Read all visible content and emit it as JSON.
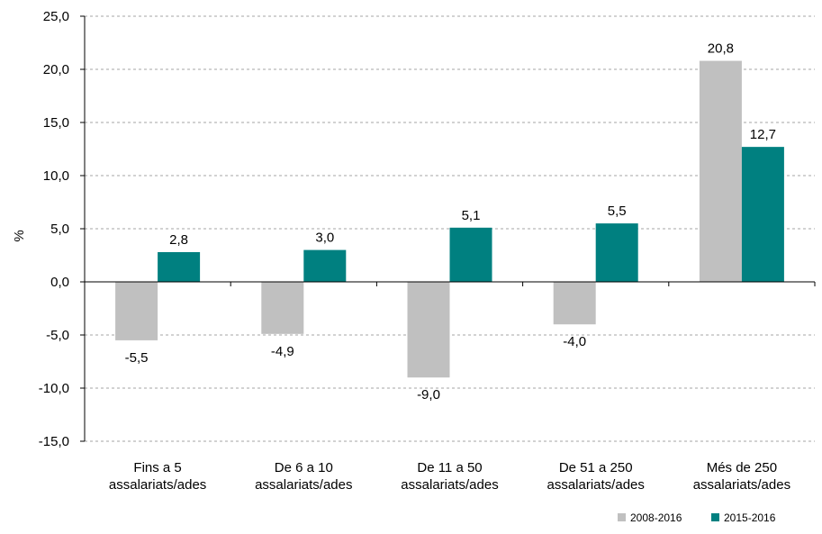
{
  "chart_data": {
    "type": "bar",
    "categories": [
      [
        "Fins a 5",
        "assalariats/ades"
      ],
      [
        "De 6 a 10",
        "assalariats/ades"
      ],
      [
        "De 11 a 50",
        "assalariats/ades"
      ],
      [
        "De 51 a 250",
        "assalariats/ades"
      ],
      [
        "Més de 250",
        "assalariats/ades"
      ]
    ],
    "series": [
      {
        "name": "2008-2016",
        "color": "#c0c0c0",
        "values": [
          -5.5,
          -4.9,
          -9.0,
          -4.0,
          20.8
        ],
        "labels": [
          "-5,5",
          "-4,9",
          "-9,0",
          "-4,0",
          "20,8"
        ]
      },
      {
        "name": "2015-2016",
        "color": "#008080",
        "values": [
          2.8,
          3.0,
          5.1,
          5.5,
          12.7
        ],
        "labels": [
          "2,8",
          "3,0",
          "5,1",
          "5,5",
          "12,7"
        ]
      }
    ],
    "ylabel": "%",
    "ylim": [
      -15,
      25
    ],
    "yticks": [
      25,
      20,
      15,
      10,
      5,
      0,
      -5,
      -10,
      -15
    ],
    "ytick_labels": [
      "25,0",
      "20,0",
      "15,0",
      "10,0",
      "5,0",
      "0,0",
      "-5,0",
      "-10,0",
      "-15,0"
    ],
    "grid": true,
    "legend_position": "bottom-right"
  }
}
